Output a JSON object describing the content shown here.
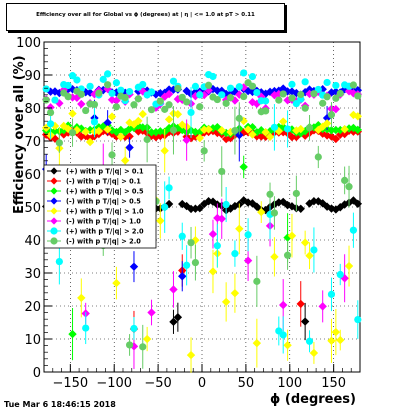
{
  "title": "Efficiency over all for Global vs ϕ (degrees) at | η | <= 1.0 at pT > 0.11",
  "timestamp": "Tue Mar  6 18:46:15 2018",
  "chart_data": {
    "type": "scatter",
    "xlabel": "ϕ (degrees)",
    "ylabel": "Efficiency over all (%)",
    "xlim": [
      -180,
      180
    ],
    "ylim": [
      0,
      100
    ],
    "x_ticks": [
      -150,
      -100,
      -50,
      0,
      50,
      100,
      150
    ],
    "y_ticks": [
      0,
      10,
      20,
      30,
      40,
      50,
      60,
      70,
      80,
      90,
      100
    ],
    "grid": true,
    "legend_position": "left-center",
    "series": [
      {
        "name": "(+) with p T/|q| > 0.1",
        "color": "#000000",
        "marker": "diamond",
        "level": 50.5,
        "amp": 1.2,
        "jitter": 0.4,
        "scatter": 0.05
      },
      {
        "name": "(-) with p T/|q| > 0.1",
        "color": "#ff0000",
        "marker": "diamond",
        "level": 72.0,
        "amp": 1.0,
        "jitter": 0.5,
        "scatter": 0.05
      },
      {
        "name": "(+) with p T/|q| > 0.5",
        "color": "#00ff00",
        "marker": "diamond",
        "level": 73.5,
        "amp": 0.8,
        "jitter": 0.6,
        "scatter": 0.05
      },
      {
        "name": "(-) with p T/|q| > 0.5",
        "color": "#0000ff",
        "marker": "diamond",
        "level": 85.0,
        "amp": 0.5,
        "jitter": 0.5,
        "scatter": 0.05
      },
      {
        "name": "(+) with p T/|q| > 1.0",
        "color": "#ffff00",
        "marker": "diamond",
        "level": 74.0,
        "amp": 2.0,
        "jitter": 3.0,
        "scatter": 0.35
      },
      {
        "name": "(-) with p T/|q| > 1.0",
        "color": "#ff00ff",
        "marker": "diamond",
        "level": 83.0,
        "amp": 1.5,
        "jitter": 2.0,
        "scatter": 0.25
      },
      {
        "name": "(+) with p T/|q| > 2.0",
        "color": "#00ffff",
        "marker": "circle",
        "level": 86.0,
        "amp": 2.0,
        "jitter": 3.0,
        "scatter": 0.35
      },
      {
        "name": "(-) with p T/|q| > 2.0",
        "color": "#66cc66",
        "marker": "circle",
        "level": 83.0,
        "amp": 2.0,
        "jitter": 3.0,
        "scatter": 0.35
      }
    ]
  }
}
